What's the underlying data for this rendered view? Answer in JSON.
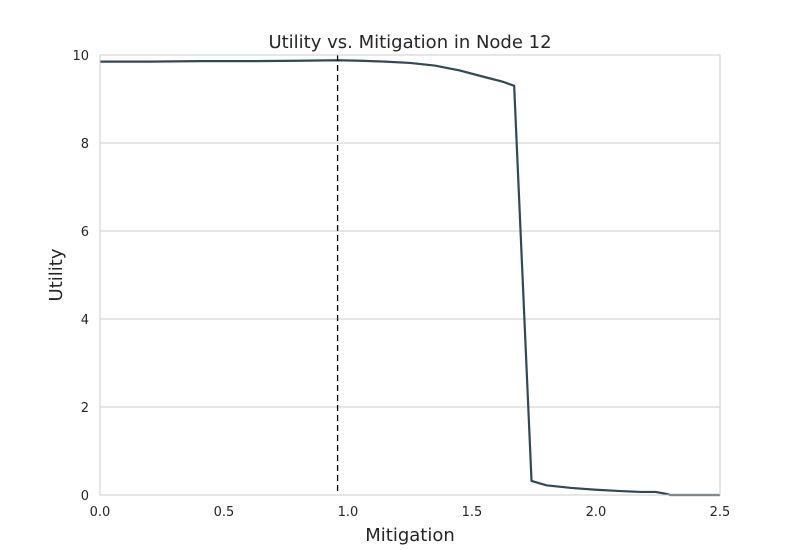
{
  "chart_data": {
    "type": "line",
    "title": "Utility vs. Mitigation in Node 12",
    "xlabel": "Mitigation",
    "ylabel": "Utility",
    "xlim": [
      0.0,
      2.5
    ],
    "ylim": [
      0,
      10
    ],
    "grid": "horizontal",
    "x_ticks": [
      "0.0",
      "0.5",
      "1.0",
      "1.5",
      "2.0",
      "2.5"
    ],
    "y_ticks": [
      "0",
      "2",
      "4",
      "6",
      "8",
      "10"
    ],
    "colors": {
      "line": "#2e4a56",
      "grid": "#cccccc",
      "frame": "#cccccc",
      "marker": "#000000"
    },
    "reference_line": {
      "x": 0.958,
      "style": "dashed"
    },
    "series": [
      {
        "x": [
          0.0,
          0.2,
          0.4,
          0.6,
          0.8,
          0.958,
          1.05,
          1.15,
          1.25,
          1.35,
          1.45,
          1.55,
          1.62,
          1.67,
          1.74,
          1.8,
          1.9,
          2.0,
          2.1,
          2.18,
          2.24,
          2.28,
          2.3,
          2.4,
          2.5
        ],
        "y": [
          9.85,
          9.85,
          9.86,
          9.86,
          9.87,
          9.88,
          9.87,
          9.85,
          9.82,
          9.76,
          9.65,
          9.5,
          9.4,
          9.3,
          0.32,
          0.22,
          0.16,
          0.12,
          0.09,
          0.07,
          0.07,
          0.03,
          0.0,
          0.0,
          0.0
        ]
      }
    ]
  }
}
